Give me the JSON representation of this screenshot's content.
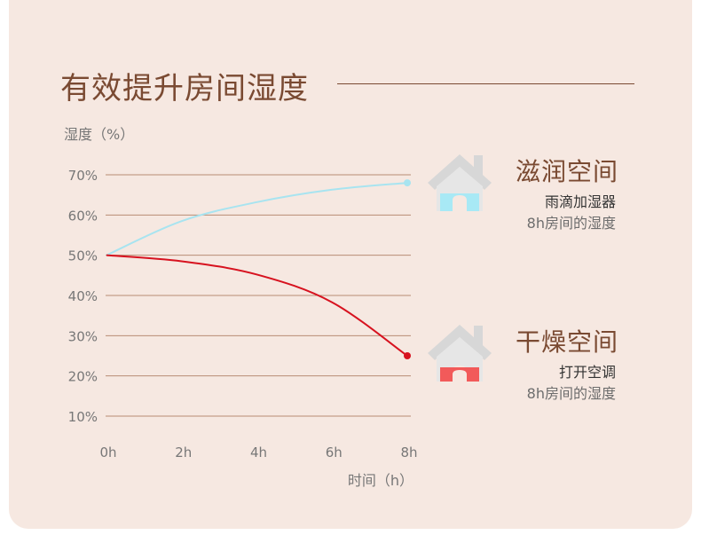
{
  "title": "有效提升房间湿度",
  "chart_data": {
    "type": "line",
    "ylabel": "湿度（%）",
    "xlabel": "时间（h）",
    "x": [
      0,
      2,
      4,
      6,
      8
    ],
    "x_tick_labels": [
      "0h",
      "2h",
      "4h",
      "6h",
      "8h"
    ],
    "y_ticks": [
      10,
      20,
      30,
      40,
      50,
      60,
      70
    ],
    "y_tick_labels": [
      "10%",
      "20%",
      "30%",
      "40%",
      "50%",
      "60%",
      "70%"
    ],
    "xlim": [
      0,
      8
    ],
    "ylim": [
      10,
      70
    ],
    "grid": true,
    "series": [
      {
        "name": "滋润空间",
        "color": "#a8e4f0",
        "values": [
          50,
          58.5,
          63.2,
          66.3,
          68
        ]
      },
      {
        "name": "干燥空间",
        "color": "#d7121f",
        "values": [
          50,
          48.5,
          45.2,
          38.3,
          25
        ]
      }
    ]
  },
  "legend": {
    "humid": {
      "title": "滋润空间",
      "sub1": "雨滴加湿器",
      "sub2": "8h房间的湿度",
      "color": "#a8e9f5",
      "icon": "house-icon"
    },
    "dry": {
      "title": "干燥空间",
      "sub1": "打开空调",
      "sub2": "8h房间的湿度",
      "color": "#f25a5a",
      "icon": "house-icon"
    }
  }
}
